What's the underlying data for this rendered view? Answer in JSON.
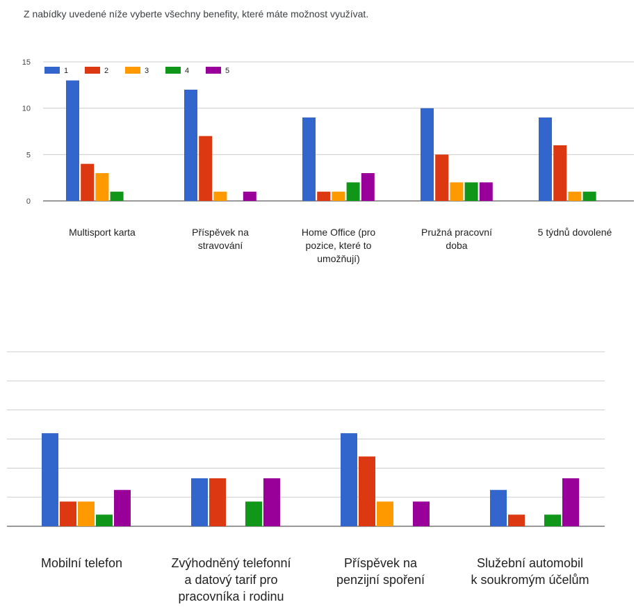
{
  "question": "Z nabídky uvedené níže vyberte všechny benefity, které máte možnost využívat.",
  "colors": [
    "#3366cc",
    "#dc3912",
    "#ff9900",
    "#109618",
    "#990099"
  ],
  "chart_data": [
    {
      "type": "bar",
      "categories": [
        [
          "Multisport karta"
        ],
        [
          "Příspěvek na",
          "stravování"
        ],
        [
          "Home Office (pro",
          "pozice, které to",
          "umožňují)"
        ],
        [
          "Pružná pracovní",
          "doba"
        ],
        [
          "5 týdnů dovolené"
        ]
      ],
      "series": [
        {
          "name": "1",
          "values": [
            13,
            12,
            9,
            10,
            9
          ]
        },
        {
          "name": "2",
          "values": [
            4,
            7,
            1,
            5,
            6
          ]
        },
        {
          "name": "3",
          "values": [
            3,
            1,
            1,
            2,
            1
          ]
        },
        {
          "name": "4",
          "values": [
            1,
            0,
            2,
            2,
            1
          ]
        },
        {
          "name": "5",
          "values": [
            0,
            1,
            3,
            2,
            0
          ]
        }
      ],
      "ylim": [
        0,
        15
      ],
      "yticks": [
        0,
        5,
        10,
        15
      ],
      "legend": "top-left",
      "grid": true
    },
    {
      "type": "bar",
      "categories": [
        [
          "Mobilní telefon"
        ],
        [
          "Zvýhodněný telefonní",
          "a datový tarif pro",
          "pracovníka i rodinu"
        ],
        [
          "Příspěvek na",
          "penzijní spoření"
        ],
        [
          "Služební automobil",
          "k soukromým účelům"
        ]
      ],
      "series": [
        {
          "values": [
            6.4,
            3.3,
            6.4,
            2.5
          ]
        },
        {
          "values": [
            1.7,
            3.3,
            4.8,
            0.8
          ]
        },
        {
          "values": [
            1.7,
            0,
            1.7,
            0
          ]
        },
        {
          "values": [
            0.8,
            1.7,
            0,
            0.8
          ]
        },
        {
          "values": [
            2.5,
            3.3,
            1.7,
            3.3
          ]
        }
      ],
      "ylim": [
        0,
        12
      ],
      "yticks": [],
      "grid": true
    }
  ]
}
